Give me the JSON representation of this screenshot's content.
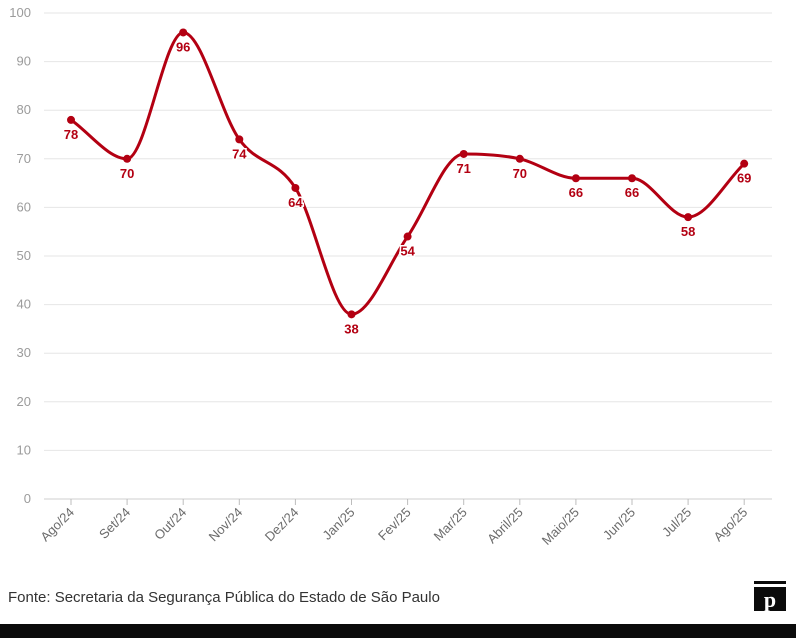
{
  "chart_data": {
    "type": "line",
    "categories": [
      "Ago/24",
      "Set/24",
      "Out/24",
      "Nov/24",
      "Dez/24",
      "Jan/25",
      "Fev/25",
      "Mar/25",
      "Abril/25",
      "Maio/25",
      "Jun/25",
      "Jul/25",
      "Ago/25"
    ],
    "series": [
      {
        "values": [
          78,
          70,
          96,
          74,
          64,
          38,
          54,
          71,
          70,
          66,
          66,
          58,
          69
        ]
      }
    ],
    "ylim": [
      0,
      100
    ],
    "yticks": [
      0,
      10,
      20,
      30,
      40,
      50,
      60,
      70,
      80,
      90,
      100
    ],
    "grid": true,
    "data_labels": true,
    "line_color": "#b30012"
  },
  "source": "Fonte: Secretaria da Segurança Pública do Estado de São Paulo",
  "logo_letter": "p"
}
